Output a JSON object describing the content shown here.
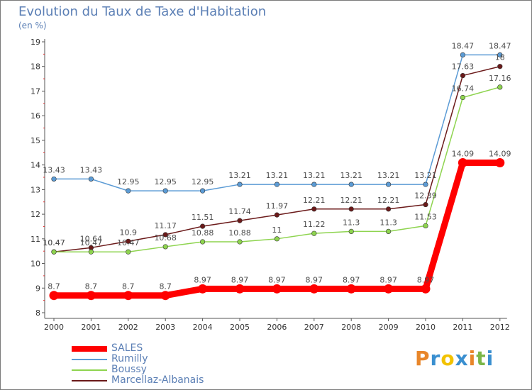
{
  "title": "Evolution du Taux de Taxe d'Habitation",
  "unit": "(en %)",
  "logo": {
    "letters": [
      "P",
      "r",
      "o",
      "x",
      "i",
      "t",
      "i"
    ],
    "colors": [
      "#e8862a",
      "#3a8fd0",
      "#f2c200",
      "#3a8fd0",
      "#e8862a",
      "#7ab648",
      "#3a8fd0"
    ]
  },
  "chart_data": {
    "type": "line",
    "title": "Evolution du Taux de Taxe d'Habitation",
    "ylabel": "(en %)",
    "xlabel": "",
    "ylim": [
      8,
      19
    ],
    "yticks": [
      "8",
      "9",
      "10",
      "11",
      "12",
      "13",
      "14",
      "15",
      "16",
      "17",
      "18",
      "19"
    ],
    "grid": false,
    "legend_position": "bottom-left",
    "x": [
      "2000",
      "2001",
      "2002",
      "2003",
      "2004",
      "2005",
      "2006",
      "2007",
      "2008",
      "2009",
      "2010",
      "2011",
      "2012"
    ],
    "series": [
      {
        "name": "SALES",
        "color": "#ff0000",
        "values": [
          8.7,
          8.7,
          8.7,
          8.7,
          8.97,
          8.97,
          8.97,
          8.97,
          8.97,
          8.97,
          8.97,
          14.09,
          14.09
        ],
        "labels": [
          "8.7",
          "8.7",
          "8.7",
          "8.7",
          "8.97",
          "8.97",
          "8.97",
          "8.97",
          "8.97",
          "8.97",
          "8.97",
          "14.09",
          "14.09"
        ]
      },
      {
        "name": "Rumilly",
        "color": "#5b9bd5",
        "values": [
          13.43,
          13.43,
          12.95,
          12.95,
          12.95,
          13.21,
          13.21,
          13.21,
          13.21,
          13.21,
          13.21,
          18.47,
          18.47
        ],
        "labels": [
          "13.43",
          "13.43",
          "12.95",
          "12.95",
          "12.95",
          "13.21",
          "13.21",
          "13.21",
          "13.21",
          "13.21",
          "13.21",
          "18.47",
          "18.47"
        ]
      },
      {
        "name": "Boussy",
        "color": "#8ed44f",
        "values": [
          10.47,
          10.47,
          10.47,
          10.68,
          10.88,
          10.88,
          11,
          11.22,
          11.3,
          11.3,
          11.53,
          16.74,
          17.16
        ],
        "labels": [
          "10.47",
          "10.47",
          "10.47",
          "10.68",
          "10.88",
          "10.88",
          "11",
          "11.22",
          "11.3",
          "11.3",
          "11.53",
          "16.74",
          "17.16"
        ]
      },
      {
        "name": "Marcellaz-Albanais",
        "color": "#6b1a1a",
        "values": [
          10.47,
          10.64,
          10.9,
          11.17,
          11.51,
          11.74,
          11.97,
          12.21,
          12.21,
          12.21,
          12.39,
          17.63,
          18
        ],
        "labels": [
          "10.47",
          "10.64",
          "10.9",
          "11.17",
          "11.51",
          "11.74",
          "11.97",
          "12.21",
          "12.21",
          "12.21",
          "12.39",
          "17.63",
          "18"
        ]
      }
    ]
  }
}
